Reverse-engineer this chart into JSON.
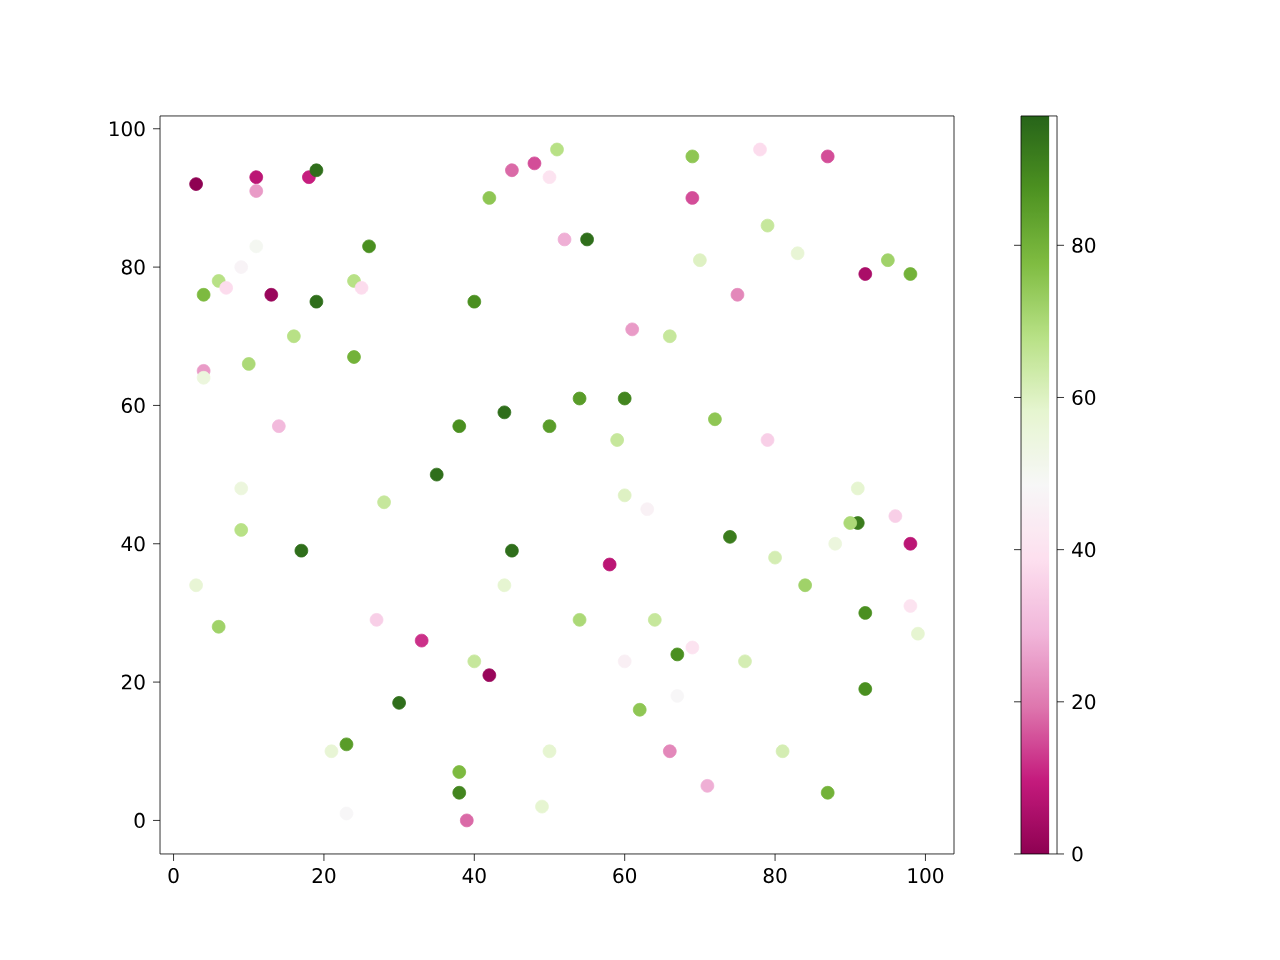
{
  "chart_data": {
    "type": "scatter",
    "marker": "circle",
    "grid": false,
    "xlim": [
      -1.8,
      103.8
    ],
    "ylim": [
      -4.85,
      101.85
    ],
    "xticks": [
      0,
      20,
      40,
      60,
      80,
      100
    ],
    "yticks": [
      0,
      20,
      40,
      60,
      80,
      100
    ],
    "clim": [
      0,
      97
    ],
    "cticks": [
      0,
      20,
      40,
      60,
      80
    ],
    "x": [
      3,
      11,
      11,
      18,
      19,
      4,
      4,
      4,
      6,
      7,
      9,
      11,
      13,
      19,
      24,
      25,
      26,
      24,
      16,
      10,
      14,
      9,
      9,
      3,
      6,
      17,
      28,
      35,
      38,
      44,
      40,
      42,
      45,
      48,
      50,
      51,
      52,
      55,
      54,
      60,
      59,
      60,
      50,
      45,
      44,
      27,
      33,
      42,
      40,
      30,
      23,
      21,
      23,
      38,
      38,
      39,
      49,
      50,
      54,
      62,
      64,
      67,
      60,
      69,
      67,
      66,
      71,
      58,
      63,
      61,
      66,
      70,
      69,
      69,
      78,
      87,
      79,
      83,
      75,
      72,
      79,
      74,
      80,
      84,
      76,
      81,
      87,
      92,
      92,
      91,
      90,
      88,
      91,
      96,
      98,
      98,
      99,
      92,
      95,
      98
    ],
    "values": [
      92,
      93,
      91,
      93,
      94,
      76,
      65,
      64,
      78,
      77,
      80,
      83,
      76,
      75,
      78,
      77,
      83,
      67,
      70,
      66,
      57,
      48,
      42,
      34,
      28,
      39,
      46,
      50,
      57,
      59,
      75,
      90,
      94,
      95,
      93,
      97,
      84,
      84,
      61,
      61,
      55,
      47,
      57,
      39,
      34,
      29,
      26,
      21,
      23,
      17,
      11,
      10,
      1,
      7,
      4,
      0,
      2,
      10,
      29,
      16,
      29,
      24,
      23,
      25,
      18,
      10,
      5,
      37,
      45,
      71,
      70,
      81,
      90,
      96,
      97,
      96,
      86,
      82,
      76,
      58,
      55,
      41,
      38,
      34,
      23,
      10,
      4,
      19,
      30,
      43,
      43,
      40,
      48,
      44,
      40,
      31,
      27,
      79,
      81,
      79
    ],
    "cvalues": [
      0,
      8,
      25,
      10,
      95,
      78,
      25,
      55,
      68,
      38,
      47,
      50,
      2,
      95,
      68,
      38,
      88,
      80,
      68,
      70,
      30,
      55,
      68,
      57,
      72,
      95,
      65,
      95,
      88,
      95,
      88,
      75,
      18,
      15,
      40,
      68,
      28,
      95,
      85,
      90,
      65,
      60,
      85,
      95,
      58,
      35,
      12,
      2,
      65,
      95,
      85,
      57,
      48,
      78,
      90,
      18,
      58,
      58,
      70,
      75,
      65,
      88,
      45,
      40,
      48,
      22,
      28,
      8,
      46,
      25,
      65,
      60,
      15,
      75,
      38,
      15,
      65,
      57,
      22,
      75,
      35,
      92,
      62,
      72,
      62,
      62,
      80,
      88,
      88,
      92,
      70,
      55,
      58,
      35,
      8,
      40,
      58,
      5,
      72,
      80
    ]
  }
}
